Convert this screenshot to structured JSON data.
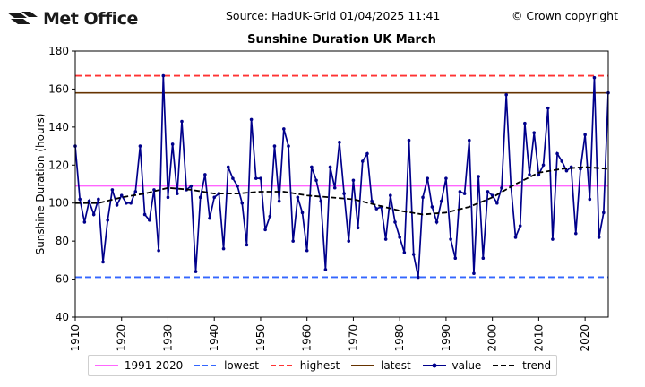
{
  "header": {
    "logo_text": "Met Office",
    "source": "Source: HadUK-Grid 01/04/2025 11:41",
    "copyright": "© Crown copyright"
  },
  "chart_data": {
    "type": "line",
    "title": "Sunshine Duration UK March",
    "ylabel": "Sunshine Duration (hours)",
    "xlabel": "",
    "xlim": [
      1910,
      2025
    ],
    "ylim": [
      40,
      180
    ],
    "x_ticks": [
      1910,
      1920,
      1930,
      1940,
      1950,
      1960,
      1970,
      1980,
      1990,
      2000,
      2010,
      2020
    ],
    "y_ticks": [
      40,
      60,
      80,
      100,
      120,
      140,
      160,
      180
    ],
    "grid": false,
    "legend_position": "bottom",
    "reference_lines": [
      {
        "name": "1991-2020",
        "value": 109,
        "color": "#ff66ff",
        "style": "solid"
      },
      {
        "name": "lowest",
        "value": 61,
        "color": "#3366ff",
        "style": "dashed"
      },
      {
        "name": "highest",
        "value": 167,
        "color": "#ff3333",
        "style": "dashed"
      },
      {
        "name": "latest",
        "value": 158,
        "color": "#663300",
        "style": "solid"
      }
    ],
    "series": [
      {
        "name": "value",
        "color": "#00008b",
        "x": [
          1910,
          1911,
          1912,
          1913,
          1914,
          1915,
          1916,
          1917,
          1918,
          1919,
          1920,
          1921,
          1922,
          1923,
          1924,
          1925,
          1926,
          1927,
          1928,
          1929,
          1930,
          1931,
          1932,
          1933,
          1934,
          1935,
          1936,
          1937,
          1938,
          1939,
          1940,
          1941,
          1942,
          1943,
          1944,
          1945,
          1946,
          1947,
          1948,
          1949,
          1950,
          1951,
          1952,
          1953,
          1954,
          1955,
          1956,
          1957,
          1958,
          1959,
          1960,
          1961,
          1962,
          1963,
          1964,
          1965,
          1966,
          1967,
          1968,
          1969,
          1970,
          1971,
          1972,
          1973,
          1974,
          1975,
          1976,
          1977,
          1978,
          1979,
          1980,
          1981,
          1982,
          1983,
          1984,
          1985,
          1986,
          1987,
          1988,
          1989,
          1990,
          1991,
          1992,
          1993,
          1994,
          1995,
          1996,
          1997,
          1998,
          1999,
          2000,
          2001,
          2002,
          2003,
          2004,
          2005,
          2006,
          2007,
          2008,
          2009,
          2010,
          2011,
          2012,
          2013,
          2014,
          2015,
          2016,
          2017,
          2018,
          2019,
          2020,
          2021,
          2022,
          2023,
          2024,
          2025
        ],
        "values": [
          130,
          102,
          90,
          101,
          94,
          102,
          69,
          91,
          107,
          99,
          104,
          100,
          100,
          106,
          130,
          94,
          91,
          107,
          75,
          167,
          103,
          131,
          105,
          143,
          107,
          109,
          64,
          103,
          115,
          92,
          103,
          105,
          76,
          119,
          113,
          109,
          100,
          78,
          144,
          113,
          113,
          86,
          93,
          130,
          101,
          139,
          130,
          80,
          103,
          95,
          75,
          119,
          112,
          101,
          65,
          119,
          108,
          132,
          105,
          80,
          112,
          87,
          122,
          126,
          101,
          97,
          98,
          81,
          104,
          90,
          82,
          74,
          133,
          73,
          61,
          103,
          113,
          98,
          90,
          101,
          113,
          81,
          71,
          106,
          105,
          133,
          63,
          114,
          71,
          106,
          104,
          100,
          108,
          157,
          109,
          82,
          88,
          142,
          115,
          137,
          115,
          120,
          150,
          81,
          126,
          122,
          117,
          119,
          84,
          118,
          136,
          102,
          166,
          82,
          95,
          158
        ]
      },
      {
        "name": "trend",
        "color": "#000000",
        "x": [
          1910,
          1915,
          1920,
          1925,
          1930,
          1935,
          1940,
          1945,
          1950,
          1955,
          1960,
          1965,
          1970,
          1975,
          1980,
          1985,
          1990,
          1995,
          2000,
          2005,
          2010,
          2015,
          2020,
          2025
        ],
        "values": [
          100,
          100,
          103,
          105,
          108,
          107,
          105,
          105,
          106,
          106,
          104,
          103,
          102,
          99,
          96,
          94,
          95,
          98,
          103,
          110,
          116,
          118,
          119,
          118
        ]
      }
    ]
  },
  "legend": {
    "items": [
      {
        "label": "1991-2020",
        "color": "#ff66ff",
        "kind": "solid"
      },
      {
        "label": "lowest",
        "color": "#3366ff",
        "kind": "dashed"
      },
      {
        "label": "highest",
        "color": "#ff3333",
        "kind": "dashed"
      },
      {
        "label": "latest",
        "color": "#663300",
        "kind": "solid"
      },
      {
        "label": "value",
        "color": "#00008b",
        "kind": "marker"
      },
      {
        "label": "trend",
        "color": "#000000",
        "kind": "dashed"
      }
    ]
  }
}
